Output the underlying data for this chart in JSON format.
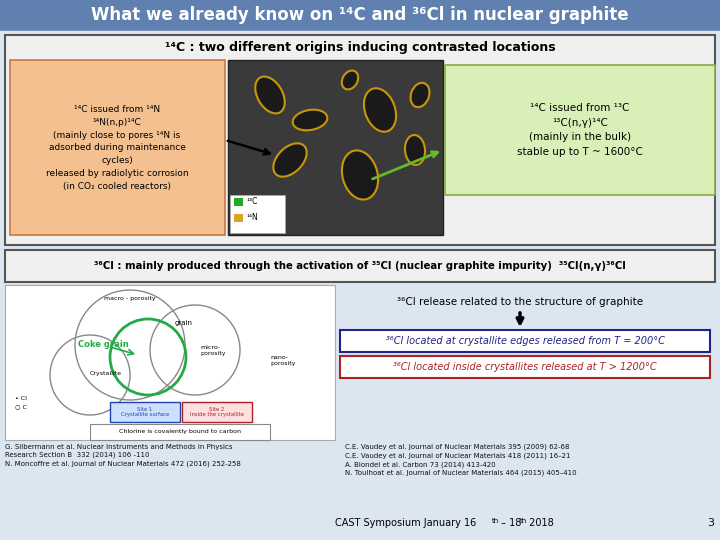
{
  "title": "What we already know on ¹⁴C and ³⁶Cl in nuclear graphite",
  "title_bg": "#6080b0",
  "title_color": "white",
  "title_fontsize": 13,
  "section1_title": "¹⁴C : two different origins inducing contrasted locations",
  "section1_border": "#555555",
  "section1_bg": "#f0f0f0",
  "left_box_bg": "#f5c090",
  "left_box_border": "#c87840",
  "left_box_lines": [
    "¹⁴C issued from ¹⁴N",
    "¹⁴N(n,p)¹⁴C",
    "(mainly close to pores ¹⁴N is",
    "adsorbed during maintenance",
    "cycles)",
    "released by radiolytic corrosion",
    "(in CO₂ cooled reactors)"
  ],
  "right_box_bg": "#d8f0b8",
  "right_box_border": "#88aa40",
  "right_box_lines": [
    "¹⁴C issued from ¹³C",
    "¹³C(n,γ)¹⁴C",
    "(mainly in the bulk)",
    "stable up to T ~ 1600°C"
  ],
  "section2_title": "³⁶Cl : mainly produced through the activation of ³⁵Cl (nuclear graphite impurity)  ³⁵Cl(n,γ)³⁶Cl",
  "section2_border": "#555555",
  "section2_bg": "#f0f0f0",
  "cl_subtitle": "³⁶Cl release related to the structure of graphite",
  "cl_box1_text": "³⁶Cl located at crystallite edges released from T = 200°C",
  "cl_box1_bg": "white",
  "cl_box1_border": "#222288",
  "cl_box1_color": "#222288",
  "cl_box2_text": "³⁶Cl located inside crystallites released at T > 1200°C",
  "cl_box2_bg": "white",
  "cl_box2_border": "#aa2222",
  "cl_box2_color": "#aa2222",
  "refs_left": [
    "G. Silbermann et al. Nuclear Instruments and Methods in Physics",
    "Research Section B  332 (2014) 106 -110",
    "N. Moncoffre et al. Journal of Nuclear Materials 472 (2016) 252-258"
  ],
  "refs_right": [
    "C.E. Vaudey et al. Journal of Nuclear Materials 395 (2009) 62-68",
    "C.E. Vaudey et al. Journal of Nuclear Materials 418 (2011) 16–21",
    "A. Blondel et al. Carbon 73 (2014) 413-420",
    "N. Toulhoat et al. Journal of Nuclear Materials 464 (2015) 405–410"
  ],
  "footer": "CAST Symposium January 16",
  "footer_sup1": "th",
  "footer_mid": " – 18",
  "footer_sup2": "th",
  "footer_end": " 2018",
  "page_num": "3",
  "bg_color": "#dce6f1"
}
